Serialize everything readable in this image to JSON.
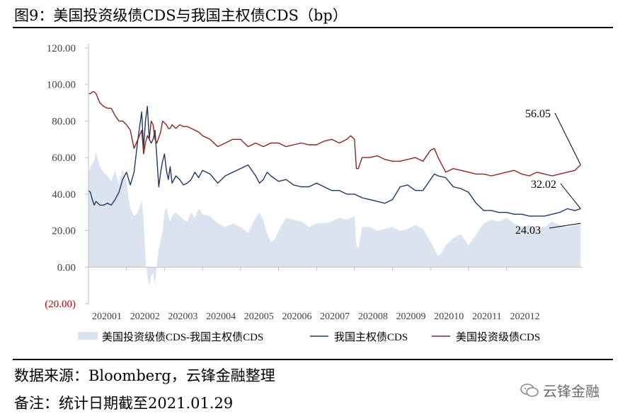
{
  "title": "图9：美国投资级债CDS与我国主权债CDS（bp）",
  "source": "数据来源：Bloomberg，云锋金融整理",
  "note": "备注：统计日期截至2021.01.29",
  "watermark": "云锋金融",
  "chart_data": {
    "type": "line",
    "xlabel": "",
    "ylabel": "",
    "ylim": [
      -20,
      120
    ],
    "yticks": [
      "120.00",
      "100.00",
      "80.00",
      "60.00",
      "40.00",
      "20.00",
      "0.00",
      "(20.00)"
    ],
    "ytick_values": [
      120,
      100,
      80,
      60,
      40,
      20,
      0,
      -20
    ],
    "negative_tick_color": "#c00000",
    "xticks": [
      "202001",
      "202002",
      "202003",
      "202004",
      "202005",
      "202006",
      "202007",
      "202008",
      "202009",
      "202010",
      "202011",
      "202012"
    ],
    "xrange": [
      0,
      13
    ],
    "grid": false,
    "legend_position": "bottom",
    "series": [
      {
        "name": "美国投资级债CDS-我国主权债CDS",
        "style": "area",
        "color": "#dbe3ef",
        "x": [
          0,
          0.08,
          0.15,
          0.2,
          0.3,
          0.4,
          0.5,
          0.6,
          0.7,
          0.8,
          0.9,
          1,
          1.05,
          1.1,
          1.2,
          1.3,
          1.4,
          1.45,
          1.5,
          1.55,
          1.6,
          1.65,
          1.7,
          1.75,
          1.8,
          1.85,
          1.9,
          1.95,
          2,
          2.05,
          2.1,
          2.15,
          2.2,
          2.3,
          2.4,
          2.5,
          2.6,
          2.7,
          2.8,
          2.9,
          3,
          3.2,
          3.4,
          3.6,
          3.8,
          4,
          4.2,
          4.4,
          4.5,
          4.6,
          4.7,
          4.8,
          4.9,
          5,
          5.2,
          5.4,
          5.6,
          5.8,
          6,
          6.2,
          6.4,
          6.6,
          6.8,
          7,
          7.05,
          7.1,
          7.2,
          7.4,
          7.6,
          7.8,
          8,
          8.2,
          8.4,
          8.6,
          8.8,
          9,
          9.1,
          9.2,
          9.3,
          9.4,
          9.5,
          9.6,
          9.8,
          10,
          10.2,
          10.4,
          10.6,
          10.8,
          11,
          11.2,
          11.4,
          11.6,
          11.8,
          12,
          12.2,
          12.4,
          12.6,
          12.8,
          12.95
        ],
        "values": [
          52,
          56,
          58,
          63,
          55,
          52,
          50,
          47,
          53,
          45,
          54,
          47,
          38,
          32,
          28,
          30,
          37,
          25,
          5,
          -5,
          -10,
          -5,
          -3,
          -10,
          2,
          10,
          15,
          20,
          30,
          33,
          28,
          25,
          28,
          30,
          28,
          26,
          25,
          30,
          27,
          32,
          29,
          28,
          24,
          22,
          24,
          22,
          19,
          27,
          30,
          26,
          18,
          14,
          15,
          20,
          27,
          26,
          25,
          22,
          24,
          24,
          25,
          27,
          26,
          28,
          12,
          10,
          22,
          22,
          20,
          21,
          22,
          20,
          21,
          23,
          21,
          14,
          10,
          6,
          8,
          12,
          14,
          16,
          18,
          12,
          18,
          24,
          26,
          25,
          27,
          24,
          22,
          23,
          21,
          22,
          25,
          23,
          22,
          23,
          24.03
        ]
      },
      {
        "name": "我国主权债CDS",
        "style": "line",
        "color": "#1f3864",
        "x": [
          0,
          0.05,
          0.1,
          0.15,
          0.2,
          0.3,
          0.4,
          0.5,
          0.6,
          0.7,
          0.8,
          0.9,
          1,
          1.1,
          1.2,
          1.3,
          1.4,
          1.45,
          1.5,
          1.55,
          1.6,
          1.65,
          1.7,
          1.75,
          1.8,
          1.85,
          1.9,
          1.95,
          2,
          2.05,
          2.1,
          2.15,
          2.2,
          2.3,
          2.4,
          2.5,
          2.6,
          2.7,
          2.8,
          2.9,
          3,
          3.2,
          3.4,
          3.6,
          3.8,
          4,
          4.2,
          4.4,
          4.5,
          4.6,
          4.7,
          4.8,
          5,
          5.2,
          5.4,
          5.6,
          5.8,
          6,
          6.2,
          6.4,
          6.6,
          6.8,
          7,
          7.2,
          7.4,
          7.6,
          7.8,
          8,
          8.2,
          8.4,
          8.6,
          8.8,
          9,
          9.1,
          9.2,
          9.4,
          9.6,
          9.8,
          10,
          10.2,
          10.4,
          10.6,
          10.8,
          11,
          11.2,
          11.4,
          11.6,
          11.8,
          12,
          12.2,
          12.4,
          12.6,
          12.8,
          12.95
        ],
        "values": [
          42,
          41,
          37,
          34,
          36,
          34,
          34,
          35,
          34,
          37,
          41,
          48,
          52,
          45,
          52,
          70,
          85,
          65,
          80,
          88,
          70,
          68,
          70,
          75,
          60,
          44,
          52,
          58,
          62,
          53,
          48,
          55,
          46,
          50,
          48,
          45,
          46,
          48,
          52,
          49,
          53,
          51,
          46,
          50,
          52,
          54,
          56,
          50,
          46,
          48,
          52,
          50,
          47,
          48,
          45,
          44,
          44,
          46,
          44,
          42,
          42,
          40,
          40,
          38,
          37,
          36,
          35,
          37,
          44,
          45,
          42,
          42,
          48,
          51,
          50,
          49,
          44,
          43,
          41,
          35,
          31,
          31,
          30,
          30,
          29,
          29,
          28,
          28,
          28,
          29,
          30,
          32,
          31,
          32.02
        ]
      },
      {
        "name": "美国投资级债CDS",
        "style": "line",
        "color": "#8b2323",
        "x": [
          0,
          0.05,
          0.1,
          0.15,
          0.2,
          0.3,
          0.4,
          0.5,
          0.6,
          0.7,
          0.8,
          0.9,
          1,
          1.1,
          1.2,
          1.3,
          1.4,
          1.45,
          1.5,
          1.55,
          1.6,
          1.65,
          1.7,
          1.75,
          1.8,
          1.85,
          1.9,
          1.95,
          2,
          2.05,
          2.1,
          2.15,
          2.2,
          2.3,
          2.4,
          2.5,
          2.6,
          2.7,
          2.8,
          2.9,
          3,
          3.2,
          3.4,
          3.6,
          3.8,
          4,
          4.2,
          4.4,
          4.6,
          4.8,
          5,
          5.2,
          5.4,
          5.6,
          5.8,
          6,
          6.2,
          6.4,
          6.6,
          6.8,
          6.9,
          7,
          7.05,
          7.1,
          7.2,
          7.4,
          7.6,
          7.8,
          8,
          8.2,
          8.4,
          8.6,
          8.8,
          9,
          9.1,
          9.2,
          9.4,
          9.6,
          9.8,
          10,
          10.2,
          10.4,
          10.6,
          10.8,
          11,
          11.2,
          11.4,
          11.6,
          11.8,
          12,
          12.2,
          12.4,
          12.6,
          12.8,
          12.95
        ],
        "values": [
          95,
          95,
          96,
          96,
          95,
          90,
          88,
          87,
          87,
          83,
          80,
          80,
          78,
          75,
          65,
          70,
          75,
          62,
          68,
          72,
          70,
          80,
          78,
          70,
          68,
          71,
          74,
          80,
          79,
          78,
          76,
          76,
          78,
          76,
          78,
          77,
          77,
          76,
          75,
          74,
          72,
          70,
          66,
          68,
          70,
          70,
          66,
          68,
          66,
          68,
          68,
          66,
          67,
          68,
          67,
          67,
          69,
          70,
          68,
          70,
          72,
          70,
          54,
          54,
          60,
          60,
          61,
          59,
          58,
          58,
          59,
          60,
          58,
          64,
          65,
          60,
          52,
          54,
          53,
          52,
          51,
          51,
          50,
          51,
          52,
          53,
          51,
          50,
          52,
          51,
          50,
          51,
          52,
          53,
          56.05
        ]
      }
    ],
    "annotations": [
      {
        "text": "56.05",
        "series": 2
      },
      {
        "text": "32.02",
        "series": 1
      },
      {
        "text": "24.03",
        "series": 0
      }
    ]
  }
}
